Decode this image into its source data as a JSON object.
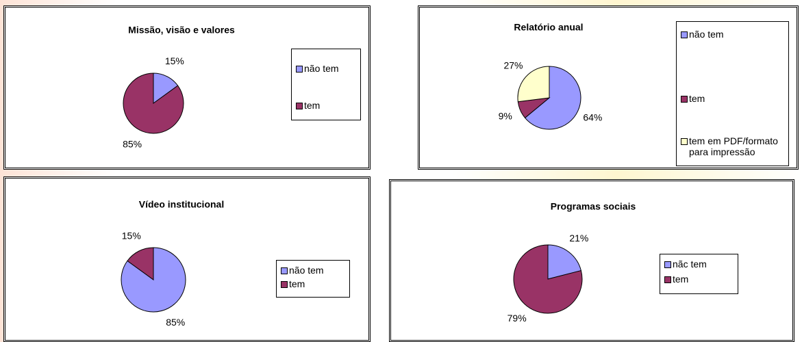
{
  "chart_data": [
    {
      "type": "pie",
      "title": "Missão, visão e valores",
      "categories": [
        "não tem",
        "tem"
      ],
      "values": [
        15,
        85
      ],
      "value_labels": [
        "15%",
        "85%"
      ],
      "colors": [
        "#9999ff",
        "#993366"
      ]
    },
    {
      "type": "pie",
      "title": "Relatório anual",
      "categories": [
        "não tem",
        "tem",
        "tem em PDF/formato para impressão"
      ],
      "values": [
        64,
        9,
        27
      ],
      "value_labels": [
        "64%",
        "9%",
        "27%"
      ],
      "colors": [
        "#9999ff",
        "#993366",
        "#ffffcc"
      ]
    },
    {
      "type": "pie",
      "title": "Vídeo institucional",
      "categories": [
        "não tem",
        "tem"
      ],
      "values": [
        85,
        15
      ],
      "value_labels": [
        "85%",
        "15%"
      ],
      "colors": [
        "#9999ff",
        "#993366"
      ]
    },
    {
      "type": "pie",
      "title": "Programas sociais",
      "categories": [
        "nãc tem",
        "tem"
      ],
      "values": [
        21,
        79
      ],
      "value_labels": [
        "21%",
        "79%"
      ],
      "colors": [
        "#9999ff",
        "#993366"
      ]
    }
  ]
}
